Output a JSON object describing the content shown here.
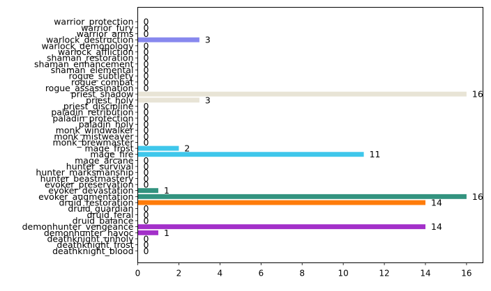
{
  "chart_data": {
    "type": "bar",
    "orientation": "horizontal",
    "title": "",
    "xlabel": "",
    "ylabel": "",
    "xlim": [
      0,
      16.8
    ],
    "xticks": [
      0,
      2,
      4,
      6,
      8,
      10,
      12,
      14,
      16
    ],
    "grid": false,
    "legend": "none",
    "categories": [
      "deathknight_blood",
      "deathknight_frost",
      "deathknight_unholy",
      "demonhunter_havoc",
      "demonhunter_vengeance",
      "druid_balance",
      "druid_feral",
      "druid_guardian",
      "druid_restoration",
      "evoker_augmentation",
      "evoker_devastation",
      "evoker_preservation",
      "hunter_beastmastery",
      "hunter_marksmanship",
      "hunter_survival",
      "mage_arcane",
      "mage_fire",
      "mage_frost",
      "monk_brewmaster",
      "monk_mistweaver",
      "monk_windwalker",
      "paladin_holy",
      "paladin_protection",
      "paladin_retribution",
      "priest_discipline",
      "priest_holy",
      "priest_shadow",
      "rogue_assassination",
      "rogue_combat",
      "rogue_subtlety",
      "shaman_elemental",
      "shaman_enhancement",
      "shaman_restoration",
      "warlock_affliction",
      "warlock_demonology",
      "warlock_destruction",
      "warrior_arms",
      "warrior_fury",
      "warrior_protection"
    ],
    "values": [
      0,
      0,
      0,
      1,
      14,
      0,
      0,
      0,
      14,
      16,
      1,
      0,
      0,
      0,
      0,
      0,
      11,
      2,
      0,
      0,
      0,
      0,
      0,
      0,
      0,
      3,
      16,
      0,
      0,
      0,
      0,
      0,
      0,
      0,
      0,
      3,
      0,
      0,
      0
    ],
    "colors": [
      "#c41e3a",
      "#c41e3a",
      "#c41e3a",
      "#a330c9",
      "#a330c9",
      "#ff7c0a",
      "#ff7c0a",
      "#ff7c0a",
      "#ff7c0a",
      "#33937f",
      "#33937f",
      "#33937f",
      "#aad372",
      "#aad372",
      "#aad372",
      "#3fc7eb",
      "#3fc7eb",
      "#3fc7eb",
      "#00ff98",
      "#00ff98",
      "#00ff98",
      "#f48cba",
      "#f48cba",
      "#f48cba",
      "#e8e4d6",
      "#e8e4d6",
      "#e8e4d6",
      "#fff468",
      "#fff468",
      "#fff468",
      "#0070dd",
      "#0070dd",
      "#0070dd",
      "#8788ee",
      "#8788ee",
      "#8788ee",
      "#c69b6d",
      "#c69b6d",
      "#c69b6d"
    ]
  }
}
